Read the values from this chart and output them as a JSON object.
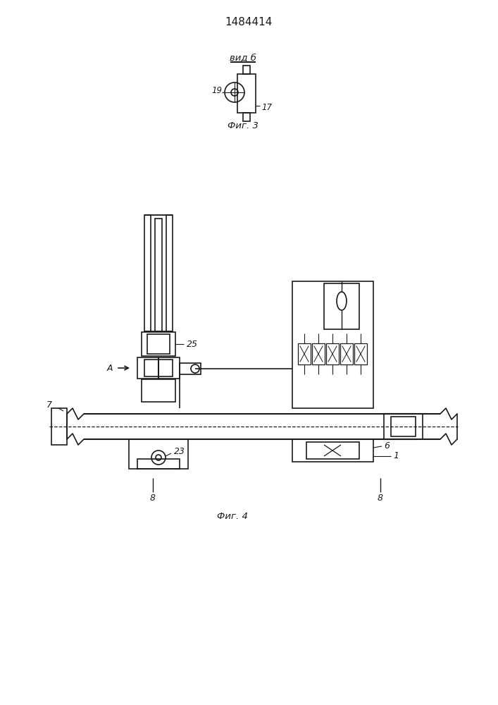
{
  "title": "1484414",
  "background": "#ffffff",
  "line_color": "#1a1a1a",
  "fig3_caption": "Фиг. 3",
  "fig4_caption": "Фиг. 4",
  "vid_label": "вид б",
  "label_19": "19",
  "label_17": "17",
  "label_25": "25",
  "label_23": "23",
  "label_7": "7",
  "label_6": "6",
  "label_1": "1",
  "label_8": "8",
  "label_A": "А"
}
